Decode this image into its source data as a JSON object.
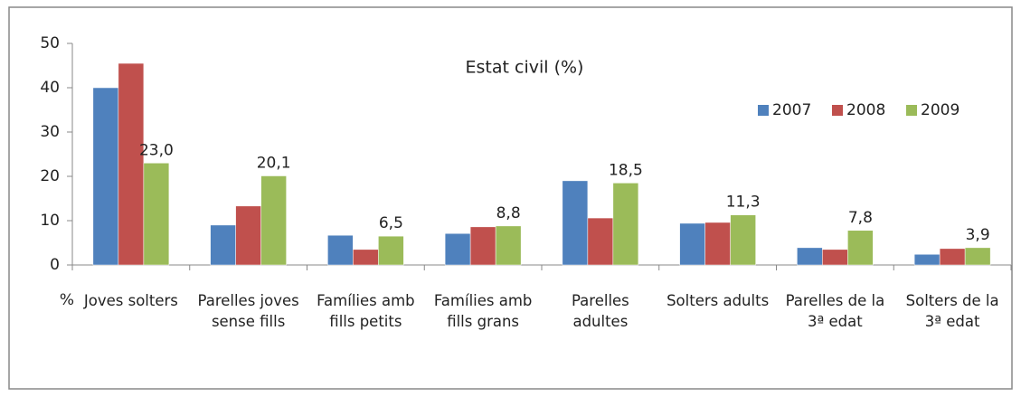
{
  "chart_data": {
    "type": "bar",
    "title": "Estat civil (%)",
    "y_label": "%",
    "categories": [
      "Joves solters",
      "Parelles joves sense fills",
      "Famílies amb fills petits",
      "Famílies amb fills grans",
      "Parelles adultes",
      "Solters adults",
      "Parelles de la 3ª edat",
      "Solters de la 3ª edat"
    ],
    "series": [
      {
        "name": "2007",
        "color": "#4f81bd",
        "values": [
          40,
          9,
          6.7,
          7.1,
          19,
          9.4,
          3.9,
          2.4
        ]
      },
      {
        "name": "2008",
        "color": "#c0504d",
        "values": [
          45.5,
          13.3,
          3.5,
          8.6,
          10.6,
          9.6,
          3.5,
          3.7
        ]
      },
      {
        "name": "2009",
        "color": "#9bbb59",
        "values": [
          23.0,
          20.1,
          6.5,
          8.8,
          18.5,
          11.3,
          7.8,
          3.9
        ],
        "value_labels": [
          "23,0",
          "20,1",
          "6,5",
          "8,8",
          "18,5",
          "11,3",
          "7,8",
          "3,9"
        ]
      }
    ],
    "ylim": [
      0,
      50
    ],
    "yticks": [
      0,
      10,
      20,
      30,
      40,
      50
    ],
    "grid": false,
    "legend": "top-right"
  }
}
